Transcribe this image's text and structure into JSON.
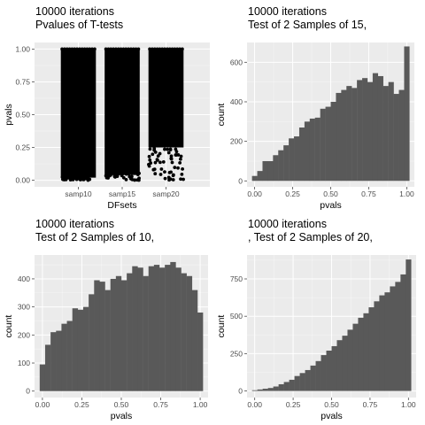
{
  "colors": {
    "panel_bg": "#ebebeb",
    "grid_major": "#ffffff",
    "bar_fill": "#595959",
    "point_fill": "#000000",
    "axis_text": "#4d4d4d",
    "label_text": "#000000"
  },
  "chart_data": [
    {
      "type": "scatter",
      "title_line1": "10000 iterations",
      "title_line2": " Pvalues of T-tests",
      "xlabel": "DFsets",
      "ylabel": "pvals",
      "categories": [
        "samp10",
        "samp15",
        "samp20"
      ],
      "ylim": [
        0,
        1
      ],
      "yticks": [
        "0.00",
        "0.25",
        "0.50",
        "0.75",
        "1.00"
      ],
      "ytick_values": [
        0,
        0.25,
        0.5,
        0.75,
        1
      ],
      "grid": true,
      "note": "jittered strip plot, 10000 p-values per category",
      "bands": [
        {
          "category": "samp10",
          "dense_from": 0.02,
          "dense_to": 1.0
        },
        {
          "category": "samp15",
          "dense_from": 0.04,
          "dense_to": 1.0
        },
        {
          "category": "samp20",
          "dense_from": 0.25,
          "dense_to": 1.0
        }
      ]
    },
    {
      "type": "bar",
      "title_line1": "10000 iterations",
      "title_line2": " Test of 2 Samples of 15,",
      "xlabel": "pvals",
      "ylabel": "count",
      "binwidth": 0.0333,
      "xlim": [
        -0.05,
        1.05
      ],
      "xticks": [
        "0.00",
        "0.25",
        "0.50",
        "0.75",
        "1.00"
      ],
      "xtick_values": [
        0,
        0.25,
        0.5,
        0.75,
        1
      ],
      "ylim": [
        -30,
        700
      ],
      "yticks": [
        "0",
        "200",
        "400",
        "600"
      ],
      "ytick_values": [
        0,
        200,
        400,
        600
      ],
      "grid": true,
      "values": [
        25,
        50,
        100,
        100,
        130,
        155,
        180,
        215,
        225,
        270,
        300,
        315,
        320,
        365,
        375,
        400,
        445,
        460,
        480,
        470,
        510,
        520,
        500,
        545,
        530,
        480,
        500,
        440,
        460,
        680
      ]
    },
    {
      "type": "bar",
      "title_line1": "10000 iterations",
      "title_line2": " Test of 2 Samples of 10,",
      "xlabel": "pvals",
      "ylabel": "count",
      "binwidth": 0.0333,
      "xlim": [
        -0.05,
        1.05
      ],
      "xticks": [
        "0.00",
        "0.25",
        "0.50",
        "0.75",
        "1.00"
      ],
      "xtick_values": [
        0,
        0.25,
        0.5,
        0.75,
        1
      ],
      "ylim": [
        -23,
        485
      ],
      "yticks": [
        "0",
        "100",
        "200",
        "300",
        "400"
      ],
      "ytick_values": [
        0,
        100,
        200,
        300,
        400
      ],
      "grid": true,
      "values": [
        95,
        165,
        210,
        215,
        240,
        250,
        295,
        290,
        300,
        345,
        395,
        390,
        360,
        400,
        410,
        395,
        420,
        445,
        440,
        410,
        445,
        450,
        440,
        450,
        460,
        440,
        420,
        410,
        360,
        280
      ]
    },
    {
      "type": "bar",
      "title_line1": "10000 iterations",
      "title_line2": ", Test of 2 Samples of 20,",
      "xlabel": "pvals",
      "ylabel": "count",
      "binwidth": 0.0333,
      "xlim": [
        -0.05,
        1.05
      ],
      "xticks": [
        "0.00",
        "0.25",
        "0.50",
        "0.75",
        "1.00"
      ],
      "xtick_values": [
        0,
        0.25,
        0.5,
        0.75,
        1
      ],
      "ylim": [
        -44,
        910
      ],
      "yticks": [
        "0",
        "250",
        "500",
        "750"
      ],
      "ytick_values": [
        0,
        250,
        500,
        750
      ],
      "grid": true,
      "values": [
        5,
        10,
        15,
        20,
        30,
        45,
        60,
        75,
        100,
        120,
        140,
        170,
        200,
        240,
        270,
        300,
        340,
        370,
        410,
        450,
        490,
        520,
        560,
        600,
        640,
        660,
        700,
        730,
        780,
        880
      ]
    }
  ]
}
